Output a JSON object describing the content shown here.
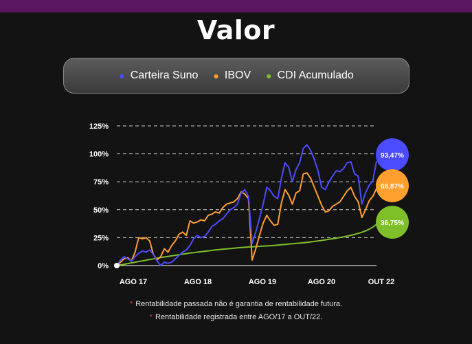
{
  "title": "Valor",
  "legend": [
    {
      "label": "Carteira Suno",
      "color": "#4b4bff"
    },
    {
      "label": "IBOV",
      "color": "#ff9f2e"
    },
    {
      "label": "CDI Acumulado",
      "color": "#7fbf2a"
    }
  ],
  "notes": [
    "Rentabilidade passada não é garantia de rentabilidade futura.",
    "Rentabilidade registrada entre AGO/17 a OUT/22."
  ],
  "chart_data": {
    "type": "line",
    "x_tick_labels": [
      "AGO 17",
      "AGO 18",
      "AGO 19",
      "AGO 20",
      "OUT 22"
    ],
    "y_tick_labels": [
      "0%",
      "25%",
      "50%",
      "75%",
      "100%",
      "125%"
    ],
    "ylim": [
      0,
      125
    ],
    "grid": true,
    "series": [
      {
        "name": "Carteira Suno",
        "color": "#4b4bff",
        "end_label": "93,47%",
        "values": [
          0,
          5,
          8,
          6,
          4,
          8,
          11,
          13,
          12,
          14,
          10,
          4,
          0,
          3,
          2,
          3,
          6,
          9,
          12,
          14,
          18,
          24,
          27,
          25,
          26,
          30,
          35,
          37,
          40,
          42,
          46,
          50,
          52,
          55,
          65,
          68,
          62,
          20,
          30,
          42,
          55,
          70,
          67,
          62,
          60,
          78,
          92,
          88,
          75,
          86,
          92,
          105,
          108,
          103,
          95,
          85,
          70,
          68,
          75,
          80,
          85,
          84,
          87,
          92,
          93,
          82,
          80,
          55,
          65,
          72,
          76,
          93.47
        ]
      },
      {
        "name": "IBOV",
        "color": "#ff9f2e",
        "end_label": "68,87%",
        "values": [
          0,
          3,
          6,
          7,
          4,
          12,
          25,
          24,
          25,
          22,
          10,
          5,
          8,
          15,
          12,
          18,
          22,
          28,
          30,
          27,
          40,
          38,
          39,
          41,
          40,
          45,
          46,
          48,
          47,
          52,
          55,
          56,
          57,
          60,
          66,
          64,
          60,
          5,
          15,
          27,
          38,
          45,
          40,
          36,
          37,
          56,
          68,
          63,
          55,
          65,
          67,
          82,
          83,
          78,
          70,
          62,
          54,
          48,
          49,
          53,
          55,
          57,
          62,
          67,
          70,
          62,
          57,
          43,
          50,
          58,
          62,
          68.87
        ]
      },
      {
        "name": "CDI Acumulado",
        "color": "#7fbf2a",
        "end_label": "36,75%",
        "values": [
          0,
          0.6,
          1.2,
          1.8,
          2.4,
          3.0,
          3.6,
          4.2,
          4.8,
          5.4,
          6.0,
          6.6,
          7.2,
          7.7,
          8.2,
          8.7,
          9.2,
          9.7,
          10.2,
          10.7,
          11.2,
          11.6,
          12.0,
          12.4,
          12.8,
          13.2,
          13.6,
          14.0,
          14.3,
          14.6,
          14.9,
          15.2,
          15.5,
          15.8,
          16.1,
          16.4,
          16.6,
          16.8,
          17.0,
          17.2,
          17.4,
          17.6,
          17.8,
          18.0,
          18.3,
          18.6,
          18.9,
          19.2,
          19.5,
          19.8,
          20.1,
          20.4,
          20.8,
          21.2,
          21.6,
          22.0,
          22.5,
          23.0,
          23.5,
          24.0,
          24.5,
          25.1,
          25.7,
          26.4,
          27.1,
          27.9,
          28.8,
          29.8,
          31.0,
          32.5,
          34.5,
          36.75
        ]
      }
    ]
  }
}
